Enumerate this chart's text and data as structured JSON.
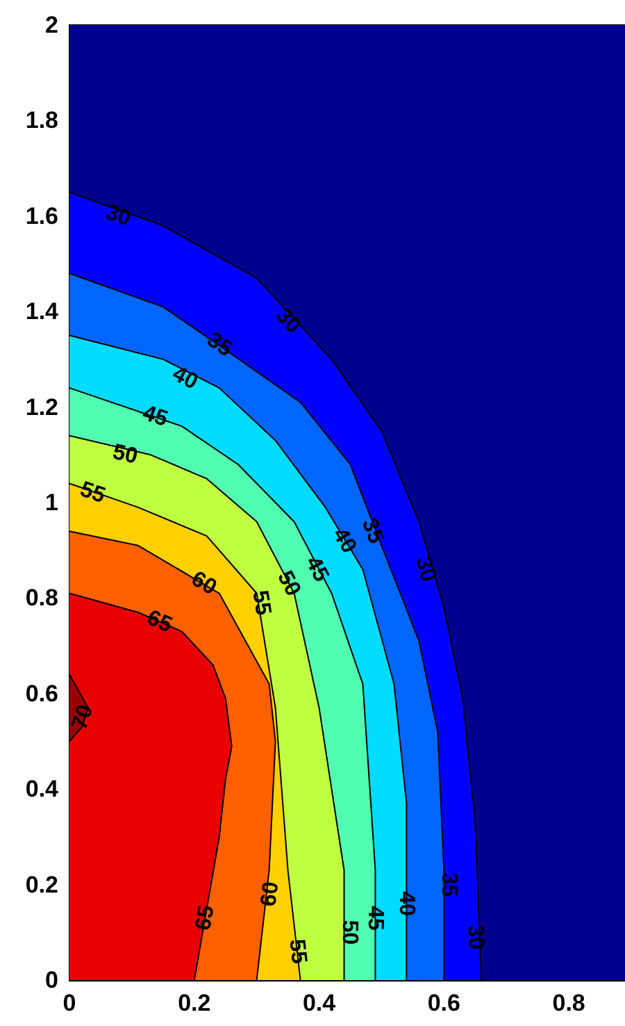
{
  "chart_data": {
    "type": "area",
    "xlim": [
      0,
      0.89
    ],
    "xticks": [
      0,
      0.2,
      0.4,
      0.6,
      0.8
    ],
    "ylim": [
      0,
      2
    ],
    "yticks": [
      0,
      0.2,
      0.4,
      0.6,
      0.8,
      1,
      1.2,
      1.4,
      1.6,
      1.8,
      2
    ],
    "bands": [
      {
        "axis": "x",
        "from": 0,
        "to": 0.89,
        "color": "#00008f"
      }
    ],
    "series": [
      {
        "color": "#0000ff",
        "x": [
          0,
          0.15,
          0.3,
          0.42,
          0.5,
          0.56,
          0.6,
          0.63,
          0.65,
          0.66
        ],
        "values": [
          1.65,
          1.58,
          1.47,
          1.3,
          1.15,
          0.96,
          0.78,
          0.59,
          0.33,
          0
        ]
      },
      {
        "color": "#0066ff",
        "x": [
          0,
          0.15,
          0.25,
          0.37,
          0.45,
          0.5,
          0.56,
          0.59,
          0.6,
          0.6
        ],
        "values": [
          1.48,
          1.41,
          1.32,
          1.21,
          1.08,
          0.91,
          0.71,
          0.52,
          0.23,
          0
        ]
      },
      {
        "color": "#00dcff",
        "x": [
          0,
          0.15,
          0.24,
          0.33,
          0.41,
          0.47,
          0.52,
          0.54,
          0.54
        ],
        "values": [
          1.35,
          1.3,
          1.24,
          1.13,
          0.99,
          0.86,
          0.62,
          0.37,
          0
        ]
      },
      {
        "color": "#50ffb0",
        "x": [
          0,
          0.18,
          0.27,
          0.36,
          0.42,
          0.47,
          0.49,
          0.49
        ],
        "values": [
          1.24,
          1.16,
          1.08,
          0.96,
          0.81,
          0.62,
          0.23,
          0
        ]
      },
      {
        "color": "#c0ff40",
        "x": [
          0,
          0.13,
          0.22,
          0.3,
          0.36,
          0.4,
          0.44,
          0.44
        ],
        "values": [
          1.14,
          1.1,
          1.05,
          0.96,
          0.81,
          0.57,
          0.23,
          0
        ]
      },
      {
        "color": "#ffd000",
        "x": [
          0,
          0.11,
          0.22,
          0.3,
          0.33,
          0.35,
          0.37
        ],
        "values": [
          1.04,
          0.99,
          0.93,
          0.81,
          0.57,
          0.23,
          0
        ]
      },
      {
        "color": "#ff6000",
        "x": [
          0,
          0.11,
          0.24,
          0.32,
          0.33,
          0.32,
          0.3
        ],
        "values": [
          0.94,
          0.91,
          0.81,
          0.62,
          0.5,
          0.23,
          0
        ]
      },
      {
        "color": "#e80000",
        "x": [
          0,
          0.11,
          0.18,
          0.23,
          0.25,
          0.26,
          0.25,
          0.24,
          0.22,
          0.2
        ],
        "values": [
          0.81,
          0.77,
          0.73,
          0.66,
          0.59,
          0.49,
          0.42,
          0.3,
          0.15,
          0
        ]
      },
      {
        "color": "#9a0000",
        "x": [
          0,
          0.03,
          0.02,
          0
        ],
        "values": [
          0.64,
          0.57,
          0.53,
          0.5
        ]
      }
    ],
    "annotations": [
      {
        "text": "30",
        "x": 0.078,
        "y": 1.6
      },
      {
        "text": "30",
        "x": 0.35,
        "y": 1.38
      },
      {
        "text": "30",
        "x": 0.57,
        "y": 0.86
      },
      {
        "text": "30",
        "x": 0.65,
        "y": 0.09
      },
      {
        "text": "35",
        "x": 0.24,
        "y": 1.33
      },
      {
        "text": "35",
        "x": 0.485,
        "y": 0.94
      },
      {
        "text": "35",
        "x": 0.607,
        "y": 0.2
      },
      {
        "text": "40",
        "x": 0.185,
        "y": 1.26
      },
      {
        "text": "40",
        "x": 0.44,
        "y": 0.92
      },
      {
        "text": "40",
        "x": 0.54,
        "y": 0.16
      },
      {
        "text": "45",
        "x": 0.137,
        "y": 1.18
      },
      {
        "text": "45",
        "x": 0.396,
        "y": 0.86
      },
      {
        "text": "45",
        "x": 0.49,
        "y": 0.13
      },
      {
        "text": "50",
        "x": 0.089,
        "y": 1.1
      },
      {
        "text": "50",
        "x": 0.351,
        "y": 0.83
      },
      {
        "text": "50",
        "x": 0.448,
        "y": 0.1
      },
      {
        "text": "55",
        "x": 0.037,
        "y": 1.02
      },
      {
        "text": "55",
        "x": 0.307,
        "y": 0.79
      },
      {
        "text": "55",
        "x": 0.365,
        "y": 0.06
      },
      {
        "text": "60",
        "x": 0.215,
        "y": 0.83
      },
      {
        "text": "60",
        "x": 0.322,
        "y": 0.18
      },
      {
        "text": "65",
        "x": 0.144,
        "y": 0.75
      },
      {
        "text": "65",
        "x": 0.218,
        "y": 0.13
      },
      {
        "text": "70",
        "x": 0.022,
        "y": 0.55
      }
    ]
  }
}
